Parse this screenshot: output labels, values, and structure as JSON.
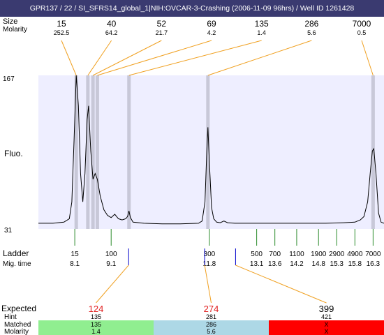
{
  "header": {
    "title": "GPR137 / 22 / SI_SFRS14_global_1|NIH:OVCAR-3-Crashing (2006-11-09 96hrs) / Well ID 1261428"
  },
  "top_labels": {
    "size": "Size",
    "molarity": "Molarity"
  },
  "side_labels": {
    "fluo": "Fluo.",
    "ladder": "Ladder",
    "mig_time": "Mig. time",
    "expected": "Expected",
    "hint": "Hint",
    "matched": "Matched",
    "molarity": "Molarity"
  },
  "colors": {
    "header_bg": "#3a3a70",
    "plot_bg": "#eeeeff",
    "band": "#c8c8d8",
    "connector": "#f0a020",
    "ladder_tick": "#2a8a2a",
    "sample_tick": "#0000cc",
    "expected_text": "#e02020",
    "matched_good": "#90ee90",
    "matched_ok": "#add8e6",
    "matched_bad": "#ff0000"
  },
  "chart_data": {
    "type": "line",
    "ylim": [
      31,
      167
    ],
    "yticks": [
      "167",
      "31"
    ],
    "xlim": [
      7.1,
      16.6
    ],
    "x_unit": "Mig. time",
    "peaks": [
      {
        "size": "15",
        "molarity": "252.5",
        "mig": 8.14
      },
      {
        "size": "40",
        "molarity": "64.2",
        "mig": 8.46
      },
      {
        "size": "52",
        "molarity": "21.7",
        "mig": 8.6
      },
      {
        "size": "69",
        "molarity": "4.2",
        "mig": 8.72
      },
      {
        "size": "135",
        "molarity": "1.4",
        "mig": 9.59
      },
      {
        "size": "286",
        "molarity": "5.6",
        "mig": 11.76
      },
      {
        "size": "7000",
        "molarity": "0.5",
        "mig": 16.3
      }
    ],
    "trace": [
      [
        7.1,
        36
      ],
      [
        7.5,
        36
      ],
      [
        7.8,
        37
      ],
      [
        7.95,
        40
      ],
      [
        8.02,
        55
      ],
      [
        8.08,
        110
      ],
      [
        8.14,
        167
      ],
      [
        8.2,
        140
      ],
      [
        8.26,
        80
      ],
      [
        8.32,
        55
      ],
      [
        8.38,
        80
      ],
      [
        8.44,
        128
      ],
      [
        8.48,
        140
      ],
      [
        8.54,
        100
      ],
      [
        8.6,
        75
      ],
      [
        8.66,
        80
      ],
      [
        8.72,
        75
      ],
      [
        8.8,
        60
      ],
      [
        8.9,
        48
      ],
      [
        9.0,
        43
      ],
      [
        9.1,
        41
      ],
      [
        9.2,
        44
      ],
      [
        9.3,
        40
      ],
      [
        9.4,
        39
      ],
      [
        9.5,
        40
      ],
      [
        9.55,
        42
      ],
      [
        9.59,
        47
      ],
      [
        9.63,
        41
      ],
      [
        9.7,
        37
      ],
      [
        10.0,
        36
      ],
      [
        10.5,
        35.5
      ],
      [
        11.0,
        35.5
      ],
      [
        11.5,
        36
      ],
      [
        11.6,
        38
      ],
      [
        11.68,
        55
      ],
      [
        11.73,
        100
      ],
      [
        11.76,
        121
      ],
      [
        11.8,
        90
      ],
      [
        11.86,
        50
      ],
      [
        11.92,
        40
      ],
      [
        12.0,
        37
      ],
      [
        12.1,
        36.5
      ],
      [
        12.2,
        38
      ],
      [
        12.3,
        36.5
      ],
      [
        12.5,
        36
      ],
      [
        13.0,
        36
      ],
      [
        13.5,
        36
      ],
      [
        14.0,
        36
      ],
      [
        14.5,
        36
      ],
      [
        15.0,
        36
      ],
      [
        15.5,
        36.5
      ],
      [
        15.8,
        37
      ],
      [
        15.95,
        39
      ],
      [
        16.05,
        42
      ],
      [
        16.15,
        55
      ],
      [
        16.22,
        80
      ],
      [
        16.28,
        100
      ],
      [
        16.32,
        102
      ],
      [
        16.38,
        80
      ],
      [
        16.45,
        45
      ],
      [
        16.52,
        37
      ],
      [
        16.6,
        36
      ]
    ],
    "ladder": [
      {
        "size": "15",
        "mig": 8.1
      },
      {
        "size": "100",
        "mig": 9.1
      },
      {
        "size": "300",
        "mig": 11.8
      },
      {
        "size": "500",
        "mig": 13.1
      },
      {
        "size": "700",
        "mig": 13.6
      },
      {
        "size": "1100",
        "mig": 14.2
      },
      {
        "size": "1900",
        "mig": 14.8
      },
      {
        "size": "2900",
        "mig": 15.3
      },
      {
        "size": "4900",
        "mig": 15.8
      },
      {
        "size": "7000",
        "mig": 16.3
      }
    ],
    "sample_marks": [
      9.58,
      11.67,
      12.52
    ],
    "expected": [
      {
        "expected": "124",
        "hint": "135",
        "matched": "135",
        "molarity": "1.4",
        "status": "good",
        "mark_mig": 9.58
      },
      {
        "expected": "274",
        "hint": "281",
        "matched": "286",
        "molarity": "5.6",
        "status": "ok",
        "mark_mig": 11.67
      },
      {
        "expected": "399",
        "hint": "421",
        "matched": "X",
        "molarity": "X",
        "status": "bad",
        "mark_mig": 12.52
      }
    ]
  }
}
